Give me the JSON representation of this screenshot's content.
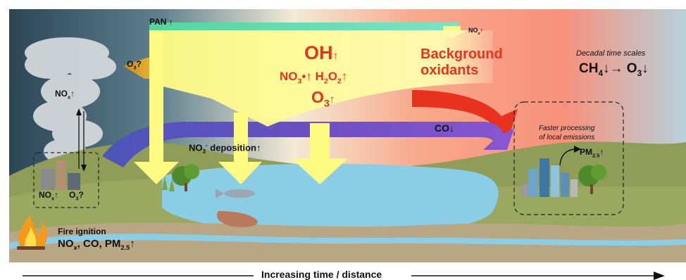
{
  "labels": {
    "pan": "PAN",
    "nox_small": "NO",
    "nox_small_sub": "x",
    "o3_q_top": "O",
    "o3_q_top_sub": "3",
    "o3_q_top_suffix": "?",
    "nox_plume": "NO",
    "nox_plume_sub": "x",
    "oh": "OH",
    "no3_rad": "NO",
    "no3_rad_sub": "3",
    "no3_rad_dot": "•",
    "h2o2": "H",
    "h2o2_sub1": "2",
    "h2o2_mid": "O",
    "h2o2_sub2": "2",
    "o3_center": "O",
    "o3_center_sub": "3",
    "background_oxidants_line1": "Background",
    "background_oxidants_line2": "oxidants",
    "decadal": "Decadal time scales",
    "ch4": "CH",
    "ch4_sub": "4",
    "o3_right": "O",
    "o3_right_sub": "3",
    "co": "CO",
    "faster_line1": "Faster processing",
    "faster_line2": "of local emissions",
    "pm25_city": "PM",
    "pm25_city_sub": "2.5",
    "no3_dep": "NO",
    "no3_dep_sub": "3",
    "no3_dep_sup": "-",
    "no3_dep_suffix": " deposition",
    "nox_fire": "NO",
    "nox_fire_sub": "x",
    "o3_fire": "O",
    "o3_fire_sub": "3",
    "o3_fire_suffix": "?",
    "fire_ignition": "Fire ignition",
    "fire_emissions_a": "NO",
    "fire_emissions_a_sub": "x",
    "fire_emissions_b": ", CO, PM",
    "fire_emissions_b_sub": "2.5",
    "axis": "Increasing time / distance"
  },
  "arrows": {
    "up": "↑",
    "down": "↓",
    "right": "→"
  },
  "colors": {
    "red_text": "#e8321e",
    "yellow_flow": "#fffb8a",
    "purple_flow": "#6a4fc0",
    "green_flow": "#5fdcb0",
    "red_flow": "#e8321e",
    "sky_right": "#f7907a",
    "sky_left": "#2f4a5a",
    "water": "#8ccde6"
  }
}
